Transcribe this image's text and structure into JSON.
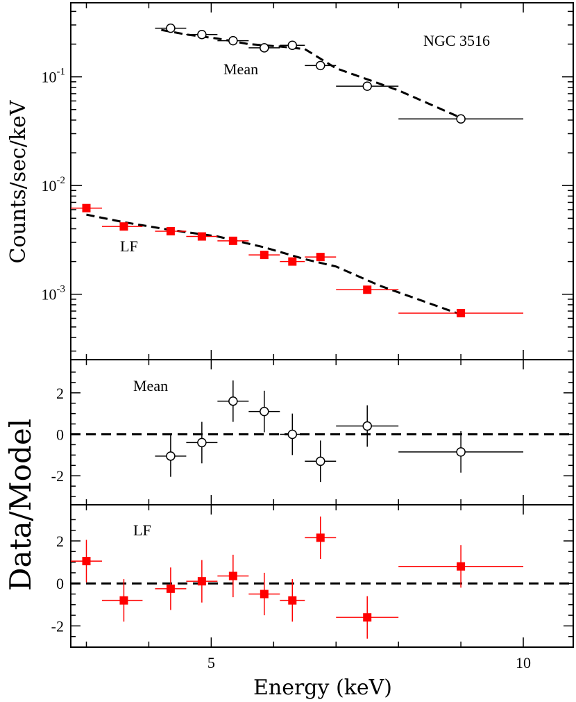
{
  "chart_data": {
    "type": "scatter",
    "title": "NGC 3516",
    "xlabel": "Energy (keV)",
    "x_ticks": [
      {
        "value": 5,
        "label": "5"
      },
      {
        "value": 10,
        "label": "10"
      }
    ],
    "xlim": [
      2.75,
      10.8
    ],
    "colors": {
      "mean": "#000000",
      "lf": "#ff0000",
      "model": "#000000"
    },
    "top": {
      "ylabel": "Counts/sec/keV",
      "yscale": "log",
      "ylim": [
        0.00025,
        0.48
      ],
      "y_ticks": [
        {
          "value": 0.1,
          "base": "10",
          "exp": "-1"
        },
        {
          "value": 0.01,
          "base": "10",
          "exp": "-2"
        },
        {
          "value": 0.001,
          "base": "10",
          "exp": "-3"
        }
      ],
      "series": [
        {
          "name": "Mean",
          "label": "Mean",
          "marker": "open-circle",
          "points": [
            {
              "x": 4.35,
              "xlo": 4.1,
              "xhi": 4.6,
              "y": 0.28
            },
            {
              "x": 4.85,
              "xlo": 4.6,
              "xhi": 5.1,
              "y": 0.245
            },
            {
              "x": 5.35,
              "xlo": 5.1,
              "xhi": 5.6,
              "y": 0.215
            },
            {
              "x": 5.85,
              "xlo": 5.6,
              "xhi": 6.1,
              "y": 0.185
            },
            {
              "x": 6.3,
              "xlo": 6.1,
              "xhi": 6.5,
              "y": 0.195
            },
            {
              "x": 6.75,
              "xlo": 6.5,
              "xhi": 7.0,
              "y": 0.127
            },
            {
              "x": 7.5,
              "xlo": 7.0,
              "xhi": 8.0,
              "y": 0.082
            },
            {
              "x": 9.0,
              "xlo": 8.0,
              "xhi": 10.0,
              "y": 0.041
            }
          ],
          "model": [
            [
              4.2,
              0.27
            ],
            [
              4.6,
              0.245
            ],
            [
              5.1,
              0.225
            ],
            [
              5.6,
              0.2
            ],
            [
              6.1,
              0.19
            ],
            [
              6.5,
              0.18
            ],
            [
              7.0,
              0.12
            ],
            [
              8.0,
              0.075
            ],
            [
              9.0,
              0.042
            ]
          ]
        },
        {
          "name": "LF",
          "label": "LF",
          "marker": "filled-square",
          "points": [
            {
              "x": 3.0,
              "xlo": 2.75,
              "xhi": 3.25,
              "y": 0.0062
            },
            {
              "x": 3.6,
              "xlo": 3.25,
              "xhi": 3.9,
              "y": 0.0042
            },
            {
              "x": 4.35,
              "xlo": 4.1,
              "xhi": 4.6,
              "y": 0.0038
            },
            {
              "x": 4.85,
              "xlo": 4.6,
              "xhi": 5.1,
              "y": 0.0034
            },
            {
              "x": 5.35,
              "xlo": 5.1,
              "xhi": 5.6,
              "y": 0.0031
            },
            {
              "x": 5.85,
              "xlo": 5.6,
              "xhi": 6.1,
              "y": 0.0023
            },
            {
              "x": 6.3,
              "xlo": 6.1,
              "xhi": 6.5,
              "y": 0.002
            },
            {
              "x": 6.75,
              "xlo": 6.5,
              "xhi": 7.0,
              "y": 0.0022
            },
            {
              "x": 7.5,
              "xlo": 7.0,
              "xhi": 8.0,
              "y": 0.0011
            },
            {
              "x": 9.0,
              "xlo": 8.0,
              "xhi": 10.0,
              "y": 0.00067
            }
          ],
          "model": [
            [
              3.0,
              0.0054
            ],
            [
              3.6,
              0.0046
            ],
            [
              4.35,
              0.0039
            ],
            [
              5.1,
              0.0034
            ],
            [
              5.85,
              0.0027
            ],
            [
              6.5,
              0.0021
            ],
            [
              7.0,
              0.0018
            ],
            [
              7.7,
              0.0012
            ],
            [
              9.0,
              0.00065
            ]
          ]
        }
      ]
    },
    "residual_ylabel": "Data/Model",
    "residuals": [
      {
        "name": "Mean",
        "label": "Mean",
        "marker": "open-circle",
        "ylim": [
          -3.4,
          3.6
        ],
        "y_ticks": [
          {
            "value": 2,
            "label": "2"
          },
          {
            "value": 0,
            "label": "0"
          },
          {
            "value": -2,
            "label": "-2"
          }
        ],
        "points": [
          {
            "x": 4.35,
            "xlo": 4.1,
            "xhi": 4.6,
            "y": -1.05,
            "err": 1.0
          },
          {
            "x": 4.85,
            "xlo": 4.6,
            "xhi": 5.1,
            "y": -0.4,
            "err": 1.0
          },
          {
            "x": 5.35,
            "xlo": 5.1,
            "xhi": 5.6,
            "y": 1.6,
            "err": 1.0
          },
          {
            "x": 5.85,
            "xlo": 5.6,
            "xhi": 6.1,
            "y": 1.1,
            "err": 1.0
          },
          {
            "x": 6.3,
            "xlo": 6.1,
            "xhi": 6.5,
            "y": 0.0,
            "err": 1.0
          },
          {
            "x": 6.75,
            "xlo": 6.5,
            "xhi": 7.0,
            "y": -1.3,
            "err": 1.0
          },
          {
            "x": 7.5,
            "xlo": 7.0,
            "xhi": 8.0,
            "y": 0.4,
            "err": 1.0
          },
          {
            "x": 9.0,
            "xlo": 8.0,
            "xhi": 10.0,
            "y": -0.85,
            "err": 1.0
          }
        ]
      },
      {
        "name": "LF",
        "label": "LF",
        "marker": "filled-square",
        "ylim": [
          -3.0,
          3.7
        ],
        "y_ticks": [
          {
            "value": 2,
            "label": "2"
          },
          {
            "value": 0,
            "label": "0"
          },
          {
            "value": -2,
            "label": "-2"
          }
        ],
        "points": [
          {
            "x": 3.0,
            "xlo": 2.75,
            "xhi": 3.25,
            "y": 1.05,
            "err": 1.0
          },
          {
            "x": 3.6,
            "xlo": 3.25,
            "xhi": 3.9,
            "y": -0.8,
            "err": 1.0
          },
          {
            "x": 4.35,
            "xlo": 4.1,
            "xhi": 4.6,
            "y": -0.25,
            "err": 1.0
          },
          {
            "x": 4.85,
            "xlo": 4.6,
            "xhi": 5.1,
            "y": 0.1,
            "err": 1.0
          },
          {
            "x": 5.35,
            "xlo": 5.1,
            "xhi": 5.6,
            "y": 0.35,
            "err": 1.0
          },
          {
            "x": 5.85,
            "xlo": 5.6,
            "xhi": 6.1,
            "y": -0.5,
            "err": 1.0
          },
          {
            "x": 6.3,
            "xlo": 6.1,
            "xhi": 6.5,
            "y": -0.8,
            "err": 1.0
          },
          {
            "x": 6.75,
            "xlo": 6.5,
            "xhi": 7.0,
            "y": 2.15,
            "err": 1.0
          },
          {
            "x": 7.5,
            "xlo": 7.0,
            "xhi": 8.0,
            "y": -1.6,
            "err": 1.0
          },
          {
            "x": 9.0,
            "xlo": 8.0,
            "xhi": 10.0,
            "y": 0.8,
            "err": 1.0
          }
        ]
      }
    ]
  }
}
